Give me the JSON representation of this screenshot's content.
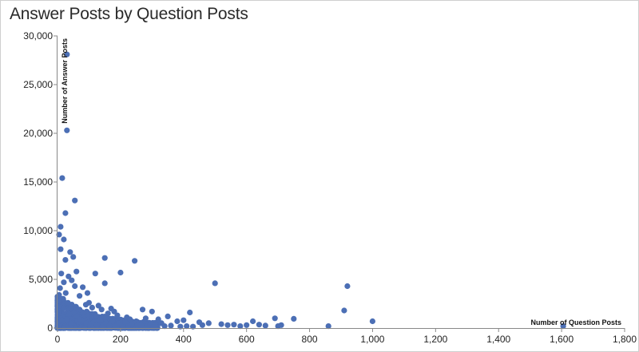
{
  "chart_data": {
    "type": "scatter",
    "title": "Answer Posts by Question Posts",
    "xlabel": "Number of Question Posts",
    "ylabel": "Number of Answer Posts",
    "xlim": [
      0,
      1800
    ],
    "ylim": [
      0,
      30000
    ],
    "x_ticks": [
      "0",
      "200",
      "400",
      "600",
      "800",
      "1,000",
      "1,200",
      "1,400",
      "1,600",
      "1,800"
    ],
    "y_ticks": [
      "0",
      "5,000",
      "10,000",
      "15,000",
      "20,000",
      "25,000",
      "30,000"
    ],
    "grid": false,
    "point_color": "#4c6fb5",
    "points": [
      [
        30,
        28100
      ],
      [
        30,
        20300
      ],
      [
        15,
        15400
      ],
      [
        55,
        13100
      ],
      [
        25,
        11800
      ],
      [
        10,
        10400
      ],
      [
        5,
        9600
      ],
      [
        20,
        9100
      ],
      [
        50,
        7300
      ],
      [
        150,
        7200
      ],
      [
        245,
        6900
      ],
      [
        40,
        7800
      ],
      [
        10,
        8100
      ],
      [
        25,
        7000
      ],
      [
        120,
        5600
      ],
      [
        200,
        5700
      ],
      [
        500,
        4600
      ],
      [
        920,
        4300
      ],
      [
        910,
        1800
      ],
      [
        750,
        950
      ],
      [
        690,
        1000
      ],
      [
        1000,
        700
      ],
      [
        1605,
        200
      ],
      [
        860,
        200
      ],
      [
        710,
        300
      ],
      [
        420,
        1600
      ],
      [
        350,
        1200
      ],
      [
        270,
        1900
      ],
      [
        300,
        1700
      ],
      [
        80,
        4200
      ],
      [
        60,
        5800
      ],
      [
        150,
        4600
      ],
      [
        95,
        3600
      ],
      [
        100,
        2600
      ],
      [
        130,
        2300
      ],
      [
        180,
        1700
      ],
      [
        170,
        2000
      ],
      [
        220,
        1100
      ],
      [
        320,
        900
      ],
      [
        380,
        700
      ],
      [
        450,
        600
      ],
      [
        480,
        500
      ],
      [
        520,
        400
      ],
      [
        560,
        350
      ],
      [
        600,
        300
      ],
      [
        640,
        350
      ],
      [
        660,
        250
      ],
      [
        540,
        300
      ],
      [
        460,
        300
      ],
      [
        400,
        800
      ],
      [
        330,
        500
      ],
      [
        280,
        1000
      ],
      [
        250,
        700
      ],
      [
        230,
        900
      ],
      [
        190,
        1300
      ],
      [
        160,
        1500
      ],
      [
        140,
        1900
      ],
      [
        110,
        2100
      ],
      [
        90,
        2400
      ],
      [
        70,
        3300
      ],
      [
        55,
        4300
      ],
      [
        45,
        4900
      ],
      [
        35,
        5300
      ],
      [
        20,
        4700
      ],
      [
        12,
        5600
      ],
      [
        8,
        4100
      ],
      [
        5,
        3400
      ],
      [
        3,
        2800
      ],
      [
        2,
        2200
      ],
      [
        4,
        1700
      ],
      [
        6,
        1300
      ],
      [
        9,
        1000
      ],
      [
        14,
        800
      ],
      [
        18,
        3000
      ],
      [
        26,
        3600
      ],
      [
        33,
        2600
      ],
      [
        42,
        2000
      ],
      [
        52,
        1600
      ],
      [
        62,
        1200
      ],
      [
        72,
        900
      ],
      [
        82,
        700
      ],
      [
        92,
        500
      ],
      [
        105,
        400
      ],
      [
        115,
        600
      ],
      [
        125,
        350
      ],
      [
        135,
        800
      ],
      [
        145,
        300
      ],
      [
        155,
        500
      ],
      [
        165,
        250
      ],
      [
        175,
        700
      ],
      [
        185,
        200
      ],
      [
        195,
        450
      ],
      [
        205,
        300
      ],
      [
        215,
        600
      ],
      [
        225,
        200
      ],
      [
        235,
        400
      ],
      [
        255,
        300
      ],
      [
        265,
        250
      ],
      [
        285,
        200
      ],
      [
        295,
        400
      ],
      [
        310,
        300
      ],
      [
        340,
        200
      ],
      [
        360,
        250
      ],
      [
        390,
        150
      ],
      [
        410,
        200
      ],
      [
        430,
        150
      ],
      [
        620,
        700
      ],
      [
        580,
        200
      ],
      [
        700,
        200
      ]
    ]
  }
}
